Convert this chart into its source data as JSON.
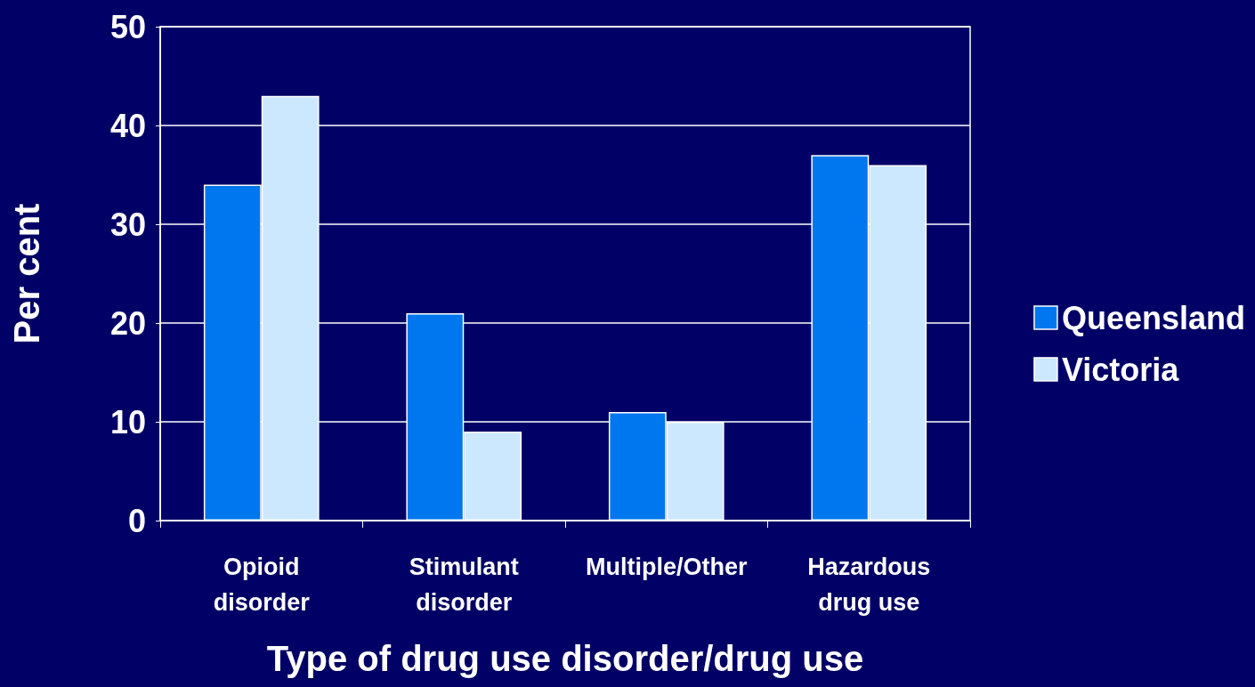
{
  "chart_data": {
    "type": "bar",
    "xlabel": "Type of drug use disorder/drug use",
    "ylabel": "Per cent",
    "categories": [
      "Opioid\ndisorder",
      "Stimulant\ndisorder",
      "Multiple/Other",
      "Hazardous\ndrug use"
    ],
    "series": [
      {
        "name": "Queensland",
        "color": "#0077ee",
        "values": [
          34,
          21,
          11,
          37
        ]
      },
      {
        "name": "Victoria",
        "color": "#cce8ff",
        "values": [
          43,
          9,
          10,
          36
        ]
      }
    ],
    "ylim": [
      0,
      50
    ],
    "yticks": [
      0,
      10,
      20,
      30,
      40,
      50
    ],
    "grid": "y",
    "legend": "right"
  }
}
